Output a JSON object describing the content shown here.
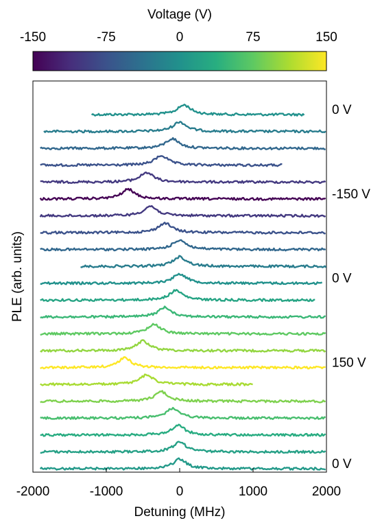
{
  "chart_data": {
    "type": "line",
    "xlabel": "Detuning (MHz)",
    "ylabel": "PLE (arb. units)",
    "xlim": [
      -2000,
      2000
    ],
    "xticks": [
      "-2000",
      "-1000",
      "0",
      "1000",
      "2000"
    ],
    "legend": "none (colorbar at top)",
    "grid": false,
    "colorbar": {
      "title": "Voltage (V)",
      "range": [
        -150,
        150
      ],
      "ticks": [
        "-150",
        "-75",
        "0",
        "75",
        "150"
      ],
      "colormap": "viridis"
    },
    "voltage_labels": [
      "0 V",
      "-150 V",
      "0 V",
      "150 V",
      "0 V"
    ],
    "series": [
      {
        "voltage": 0,
        "peak_detuning": 60,
        "x_range": [
          -1200,
          1700
        ]
      },
      {
        "voltage": -25,
        "peak_detuning": 0,
        "x_range": [
          -1850,
          2000
        ]
      },
      {
        "voltage": -50,
        "peak_detuning": -100,
        "x_range": [
          -1900,
          2000
        ]
      },
      {
        "voltage": -75,
        "peak_detuning": -250,
        "x_range": [
          -1900,
          1400
        ]
      },
      {
        "voltage": -100,
        "peak_detuning": -450,
        "x_range": [
          -1900,
          2000
        ]
      },
      {
        "voltage": -150,
        "peak_detuning": -700,
        "x_range": [
          -1900,
          2000
        ]
      },
      {
        "voltage": -100,
        "peak_detuning": -400,
        "x_range": [
          -1900,
          2000
        ]
      },
      {
        "voltage": -75,
        "peak_detuning": -200,
        "x_range": [
          -1900,
          2000
        ]
      },
      {
        "voltage": -50,
        "peak_detuning": 0,
        "x_range": [
          -1900,
          2000
        ]
      },
      {
        "voltage": -25,
        "peak_detuning": 0,
        "x_range": [
          -1350,
          2000
        ]
      },
      {
        "voltage": 0,
        "peak_detuning": 0,
        "x_range": [
          -1900,
          1950
        ]
      },
      {
        "voltage": 25,
        "peak_detuning": -50,
        "x_range": [
          -1900,
          1850
        ]
      },
      {
        "voltage": 50,
        "peak_detuning": -200,
        "x_range": [
          -1900,
          2000
        ]
      },
      {
        "voltage": 75,
        "peak_detuning": -350,
        "x_range": [
          -1900,
          2000
        ]
      },
      {
        "voltage": 100,
        "peak_detuning": -500,
        "x_range": [
          -1900,
          2000
        ]
      },
      {
        "voltage": 150,
        "peak_detuning": -750,
        "x_range": [
          -1900,
          2000
        ]
      },
      {
        "voltage": 110,
        "peak_detuning": -450,
        "x_range": [
          -1900,
          1000
        ]
      },
      {
        "voltage": 90,
        "peak_detuning": -250,
        "x_range": [
          -1900,
          2000
        ]
      },
      {
        "voltage": 60,
        "peak_detuning": -100,
        "x_range": [
          -1900,
          2000
        ]
      },
      {
        "voltage": 35,
        "peak_detuning": -20,
        "x_range": [
          -1900,
          2000
        ]
      },
      {
        "voltage": 20,
        "peak_detuning": 0,
        "x_range": [
          -1900,
          2000
        ]
      },
      {
        "voltage": 10,
        "peak_detuning": 0,
        "x_range": [
          -1900,
          2000
        ]
      }
    ]
  }
}
